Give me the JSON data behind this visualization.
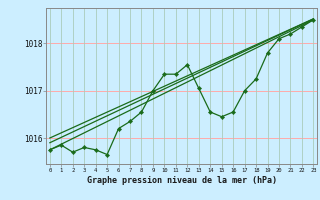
{
  "xlabel": "Graphe pression niveau de la mer (hPa)",
  "bg_color": "#cceeff",
  "line_color": "#1a6b1a",
  "grid_v_color": "#aaccbb",
  "grid_h_color": "#ffaaaa",
  "hours": [
    0,
    1,
    2,
    3,
    4,
    5,
    6,
    7,
    8,
    9,
    10,
    11,
    12,
    13,
    14,
    15,
    16,
    17,
    18,
    19,
    20,
    21,
    22,
    23
  ],
  "pressure": [
    1015.75,
    1015.85,
    1015.7,
    1015.8,
    1015.75,
    1015.65,
    1016.2,
    1016.35,
    1016.55,
    1017.0,
    1017.35,
    1017.35,
    1017.55,
    1017.05,
    1016.55,
    1016.45,
    1016.55,
    1017.0,
    1017.25,
    1017.8,
    1018.1,
    1018.2,
    1018.35,
    1018.5
  ],
  "trend1_x": [
    0,
    23
  ],
  "trend1_y": [
    1015.75,
    1018.5
  ],
  "trend2_x": [
    0,
    23
  ],
  "trend2_y": [
    1015.9,
    1018.52
  ],
  "trend3_x": [
    0,
    23
  ],
  "trend3_y": [
    1016.0,
    1018.52
  ],
  "ylim": [
    1015.45,
    1018.75
  ],
  "yticks": [
    1016,
    1017,
    1018
  ],
  "xlim": [
    -0.3,
    23.3
  ]
}
